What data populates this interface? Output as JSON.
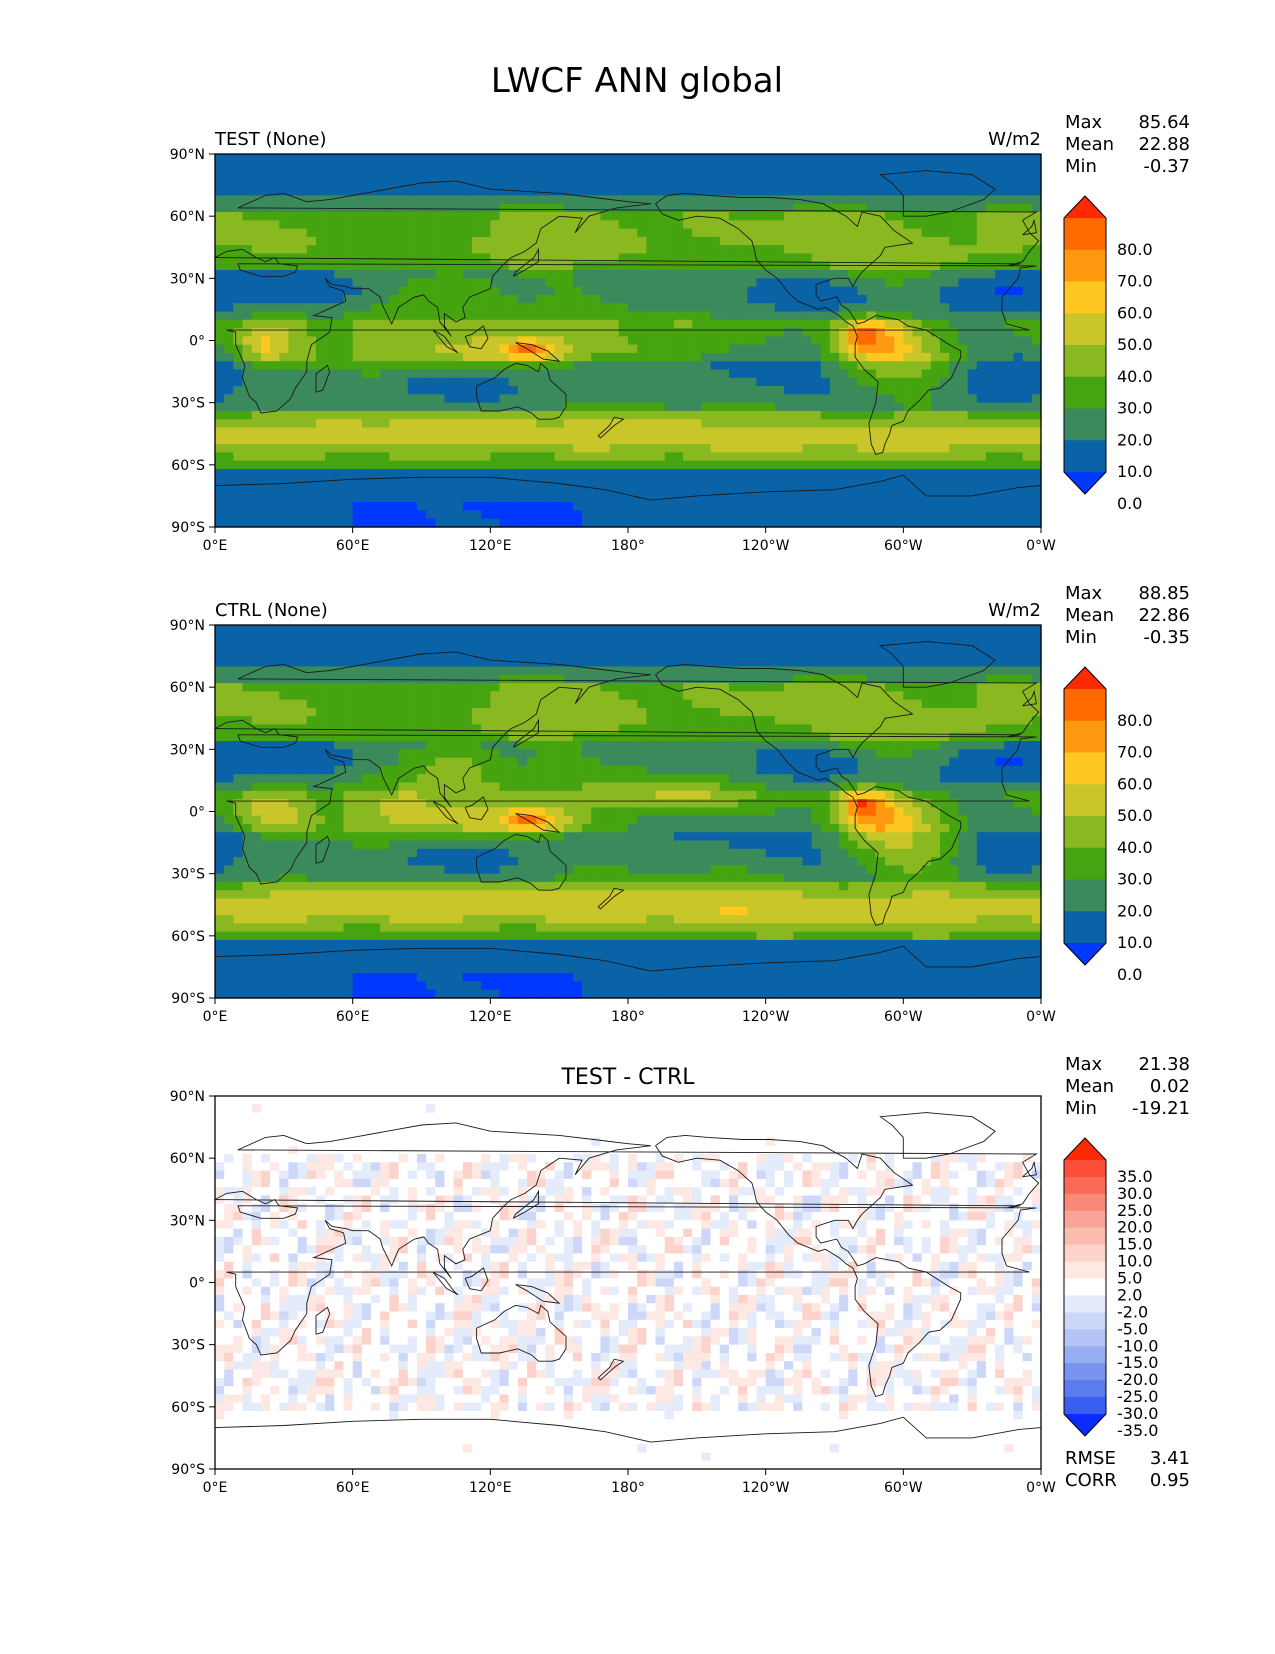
{
  "figure": {
    "title": "LWCF ANN global"
  },
  "chart_data": [
    {
      "type": "heatmap",
      "panel": "test",
      "title_left": "TEST (None)",
      "units": "W/m2",
      "stats": {
        "labels": [
          "Max",
          "Mean",
          "Min"
        ],
        "values": [
          "85.64",
          "22.88",
          "-0.37"
        ]
      },
      "x_ticks": [
        "0°E",
        "60°E",
        "120°E",
        "180°",
        "120°W",
        "60°W",
        "0°W"
      ],
      "y_ticks": [
        "90°N",
        "60°N",
        "30°N",
        "0°",
        "30°S",
        "60°S",
        "90°S"
      ],
      "xlim": [
        0,
        360
      ],
      "ylim": [
        -90,
        90
      ],
      "colorbar": {
        "labels": [
          "80.0",
          "70.0",
          "60.0",
          "50.0",
          "40.0",
          "30.0",
          "20.0",
          "10.0",
          "0.0"
        ],
        "colors": [
          "#ff2a00",
          "#ff6a00",
          "#ff9a10",
          "#ffc820",
          "#c8c628",
          "#8ab820",
          "#45a410",
          "#3a8a5c",
          "#0a63a6",
          "#0038ff"
        ]
      }
    },
    {
      "type": "heatmap",
      "panel": "ctrl",
      "title_left": "CTRL (None)",
      "units": "W/m2",
      "stats": {
        "labels": [
          "Max",
          "Mean",
          "Min"
        ],
        "values": [
          "88.85",
          "22.86",
          "-0.35"
        ]
      },
      "x_ticks": [
        "0°E",
        "60°E",
        "120°E",
        "180°",
        "120°W",
        "60°W",
        "0°W"
      ],
      "y_ticks": [
        "90°N",
        "60°N",
        "30°N",
        "0°",
        "30°S",
        "60°S",
        "90°S"
      ],
      "xlim": [
        0,
        360
      ],
      "ylim": [
        -90,
        90
      ],
      "colorbar": {
        "labels": [
          "80.0",
          "70.0",
          "60.0",
          "50.0",
          "40.0",
          "30.0",
          "20.0",
          "10.0",
          "0.0"
        ],
        "colors": [
          "#ff2a00",
          "#ff6a00",
          "#ff9a10",
          "#ffc820",
          "#c8c628",
          "#8ab820",
          "#45a410",
          "#3a8a5c",
          "#0a63a6",
          "#0038ff"
        ]
      }
    },
    {
      "type": "heatmap",
      "panel": "diff",
      "title_center": "TEST - CTRL",
      "stats": {
        "labels": [
          "Max",
          "Mean",
          "Min"
        ],
        "values": [
          "21.38",
          "0.02",
          "-19.21"
        ]
      },
      "metrics": {
        "labels": [
          "RMSE",
          "CORR"
        ],
        "values": [
          "3.41",
          "0.95"
        ]
      },
      "x_ticks": [
        "0°E",
        "60°E",
        "120°E",
        "180°",
        "120°W",
        "60°W",
        "0°W"
      ],
      "y_ticks": [
        "90°N",
        "60°N",
        "30°N",
        "0°",
        "30°S",
        "60°S",
        "90°S"
      ],
      "xlim": [
        0,
        360
      ],
      "ylim": [
        -90,
        90
      ],
      "colorbar": {
        "labels": [
          "35.0",
          "30.0",
          "25.0",
          "20.0",
          "15.0",
          "10.0",
          "5.0",
          "2.0",
          "-2.0",
          "-5.0",
          "-10.0",
          "-15.0",
          "-20.0",
          "-25.0",
          "-30.0",
          "-35.0"
        ],
        "colors": [
          "#ff2a00",
          "#fd4f3a",
          "#fb6a58",
          "#f98a78",
          "#f9a496",
          "#fbbcb0",
          "#fcd2ca",
          "#fde8e3",
          "#ffffff",
          "#e4ebfb",
          "#cdd8f8",
          "#b3c4f5",
          "#96aef2",
          "#7894ef",
          "#5a7cee",
          "#3a5ef2",
          "#0a2cff"
        ]
      }
    }
  ]
}
